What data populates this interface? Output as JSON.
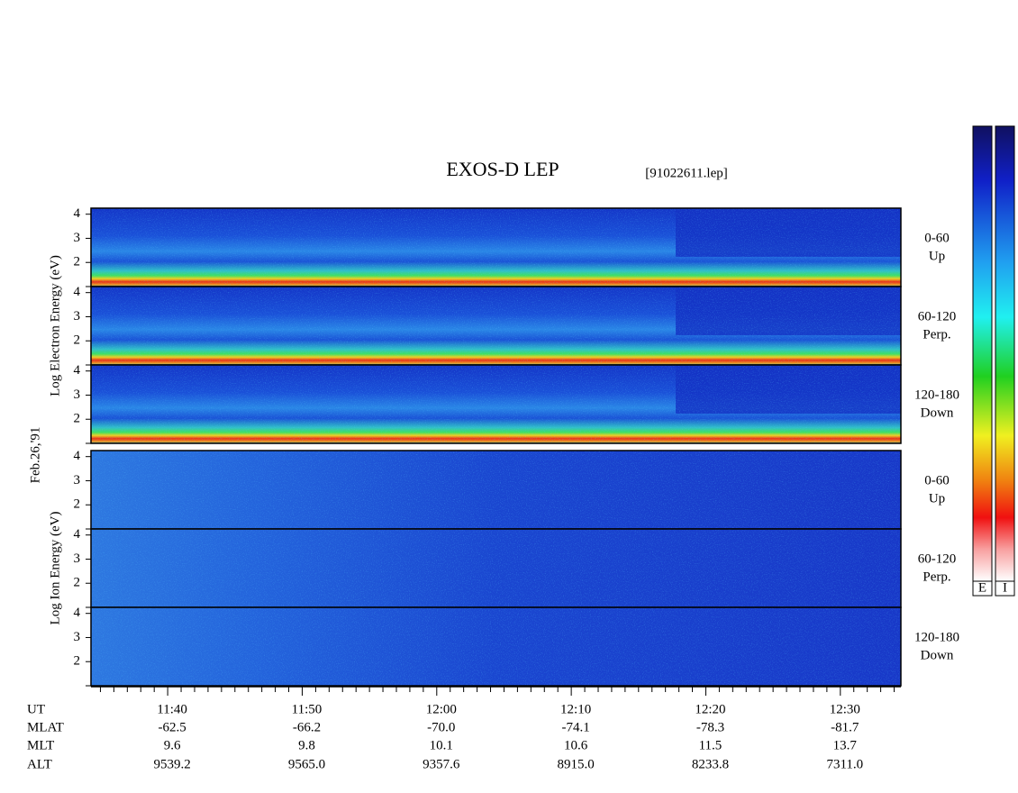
{
  "title": "EXOS-D LEP",
  "file": "[91022611.lep]",
  "date": "Feb.26,'91",
  "groups": [
    {
      "label": "Log Electron Energy (eV)",
      "panels": [
        {
          "angle": "0-60",
          "direction": "Up"
        },
        {
          "angle": "60-120",
          "direction": "Perp."
        },
        {
          "angle": "120-180",
          "direction": "Down"
        }
      ]
    },
    {
      "label": "Log Ion Energy (eV)",
      "panels": [
        {
          "angle": "0-60",
          "direction": "Up"
        },
        {
          "angle": "60-120",
          "direction": "Perp."
        },
        {
          "angle": "120-180",
          "direction": "Down"
        }
      ]
    }
  ],
  "ylim": [
    1,
    4.25
  ],
  "yticks": [
    2,
    3,
    4
  ],
  "xlim": [
    694.3,
    754.5
  ],
  "xticks": [
    {
      "value": 700,
      "label": "11:40"
    },
    {
      "value": 710,
      "label": "11:50"
    },
    {
      "value": 720,
      "label": "12:00"
    },
    {
      "value": 730,
      "label": "12:10"
    },
    {
      "value": 740,
      "label": "12:20"
    },
    {
      "value": 750,
      "label": "12:30"
    }
  ],
  "minor_xticks": [
    695,
    696,
    697,
    698,
    699,
    701,
    702,
    703,
    704,
    705,
    706,
    707,
    708,
    709,
    711,
    712,
    713,
    714,
    715,
    716,
    717,
    718,
    719,
    721,
    722,
    723,
    724,
    725,
    726,
    727,
    728,
    729,
    731,
    732,
    733,
    734,
    735,
    736,
    737,
    738,
    739,
    741,
    742,
    743,
    744,
    745,
    746,
    747,
    748,
    749,
    751,
    752,
    753,
    754
  ],
  "ephemeris": {
    "labels": [
      "UT",
      "MLAT",
      "MLT",
      "ALT"
    ],
    "rows": [
      [
        "-62.5",
        "-66.2",
        "-70.0",
        "-74.1",
        "-78.3",
        "-81.7"
      ],
      [
        "9.6",
        "9.8",
        "10.1",
        "10.6",
        "11.5",
        "13.7"
      ],
      [
        "9539.2",
        "9565.0",
        "9357.6",
        "8915.0",
        "8233.8",
        "7311.0"
      ]
    ]
  },
  "colorbars": [
    "E",
    "I"
  ]
}
